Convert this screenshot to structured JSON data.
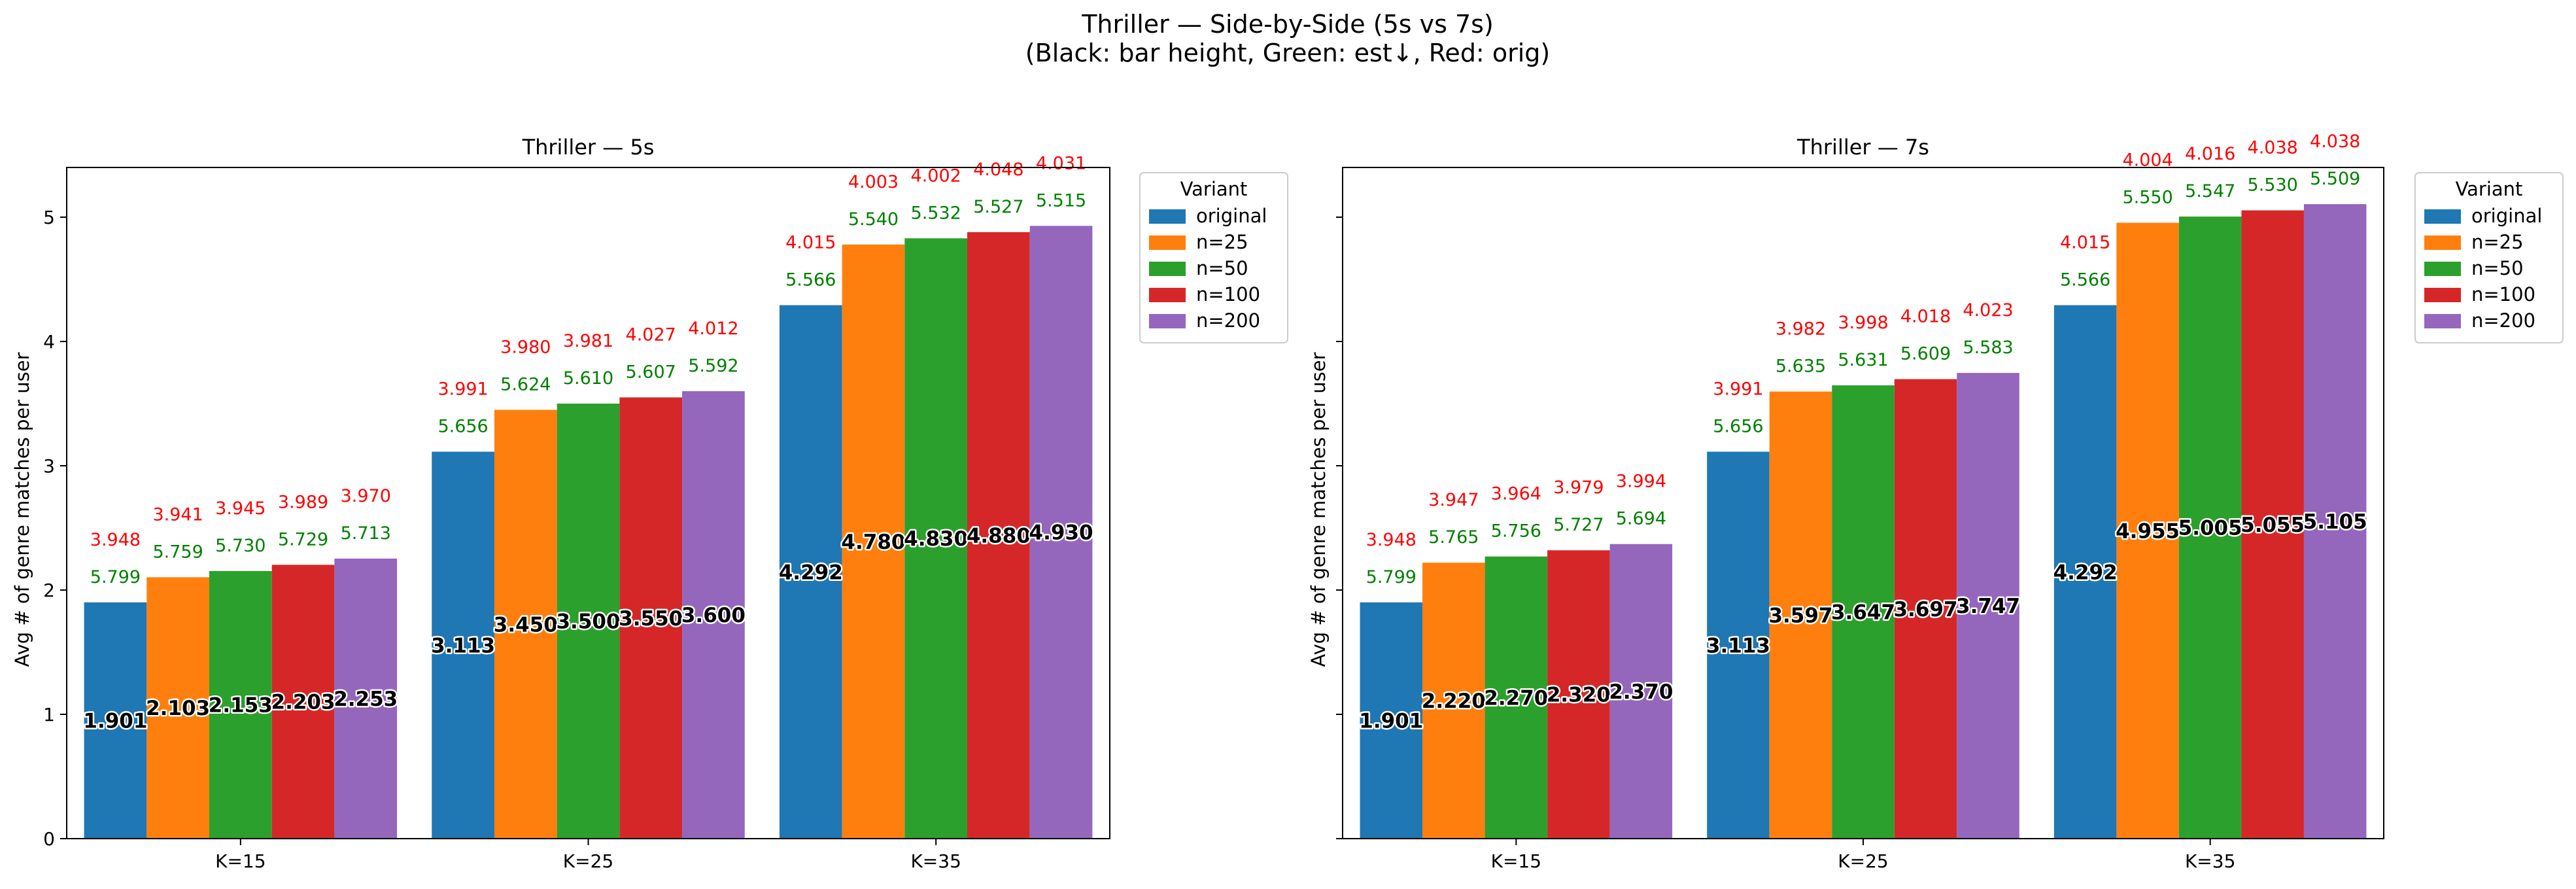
{
  "figure": {
    "title_line1": "Thriller — Side-by-Side (5s vs 7s)",
    "title_line2": "(Black: bar height, Green: est↓, Red: orig)"
  },
  "colors": {
    "original": "#1f77b4",
    "n=25": "#ff7f0e",
    "n=50": "#2ca02c",
    "n=100": "#d62728",
    "n=200": "#9467bd",
    "label_green": "#008000",
    "label_red": "#ff0000"
  },
  "chart_data": [
    {
      "type": "bar",
      "title": "Thriller — 5s",
      "xlabel": "",
      "ylabel": "Avg # of genre matches per user",
      "ylim": [
        0,
        5.4
      ],
      "yticks": [
        0,
        1,
        2,
        3,
        4,
        5
      ],
      "categories": [
        "K=15",
        "K=25",
        "K=35"
      ],
      "legend_title": "Variant",
      "legend_position": "outside-top-right",
      "grid": false,
      "series": [
        {
          "name": "original",
          "values": [
            1.901,
            3.113,
            4.292
          ],
          "green": [
            "5.799",
            "5.656",
            "5.566"
          ],
          "red": [
            "3.948",
            "3.991",
            "4.015"
          ],
          "black": [
            "1.901",
            "3.113",
            "4.292"
          ]
        },
        {
          "name": "n=25",
          "values": [
            2.103,
            3.45,
            4.78
          ],
          "green": [
            "5.759",
            "5.624",
            "5.540"
          ],
          "red": [
            "3.941",
            "3.980",
            "4.003"
          ],
          "black": [
            "2.103",
            "3.450",
            "4.780"
          ]
        },
        {
          "name": "n=50",
          "values": [
            2.153,
            3.5,
            4.83
          ],
          "green": [
            "5.730",
            "5.610",
            "5.532"
          ],
          "red": [
            "3.945",
            "3.981",
            "4.002"
          ],
          "black": [
            "2.153",
            "3.500",
            "4.830"
          ]
        },
        {
          "name": "n=100",
          "values": [
            2.203,
            3.55,
            4.88
          ],
          "green": [
            "5.729",
            "5.607",
            "5.527"
          ],
          "red": [
            "3.989",
            "4.027",
            "4.048"
          ],
          "black": [
            "2.203",
            "3.550",
            "4.880"
          ]
        },
        {
          "name": "n=200",
          "values": [
            2.253,
            3.6,
            4.93
          ],
          "green": [
            "5.713",
            "5.592",
            "5.515"
          ],
          "red": [
            "3.970",
            "4.012",
            "4.031"
          ],
          "black": [
            "2.253",
            "3.600",
            "4.930"
          ]
        }
      ]
    },
    {
      "type": "bar",
      "title": "Thriller — 7s",
      "xlabel": "",
      "ylabel": "Avg # of genre matches per user",
      "ylim": [
        0,
        5.4
      ],
      "yticks": [
        0,
        1,
        2,
        3,
        4,
        5
      ],
      "categories": [
        "K=15",
        "K=25",
        "K=35"
      ],
      "legend_title": "Variant",
      "legend_position": "outside-top-right",
      "grid": false,
      "series": [
        {
          "name": "original",
          "values": [
            1.901,
            3.113,
            4.292
          ],
          "green": [
            "5.799",
            "5.656",
            "5.566"
          ],
          "red": [
            "3.948",
            "3.991",
            "4.015"
          ],
          "black": [
            "1.901",
            "3.113",
            "4.292"
          ]
        },
        {
          "name": "n=25",
          "values": [
            2.22,
            3.597,
            4.955
          ],
          "green": [
            "5.765",
            "5.635",
            "5.550"
          ],
          "red": [
            "3.947",
            "3.982",
            "4.004"
          ],
          "black": [
            "2.220",
            "3.597",
            "4.955"
          ]
        },
        {
          "name": "n=50",
          "values": [
            2.27,
            3.647,
            5.005
          ],
          "green": [
            "5.756",
            "5.631",
            "5.547"
          ],
          "red": [
            "3.964",
            "3.998",
            "4.016"
          ],
          "black": [
            "2.270",
            "3.647",
            "5.005"
          ]
        },
        {
          "name": "n=100",
          "values": [
            2.32,
            3.697,
            5.055
          ],
          "green": [
            "5.727",
            "5.609",
            "5.530"
          ],
          "red": [
            "3.979",
            "4.018",
            "4.038"
          ],
          "black": [
            "2.320",
            "3.697",
            "5.055"
          ]
        },
        {
          "name": "n=200",
          "values": [
            2.37,
            3.747,
            5.105
          ],
          "green": [
            "5.694",
            "5.583",
            "5.509"
          ],
          "red": [
            "3.994",
            "4.023",
            "4.038"
          ],
          "black": [
            "2.370",
            "3.747",
            "5.105"
          ]
        }
      ]
    }
  ]
}
